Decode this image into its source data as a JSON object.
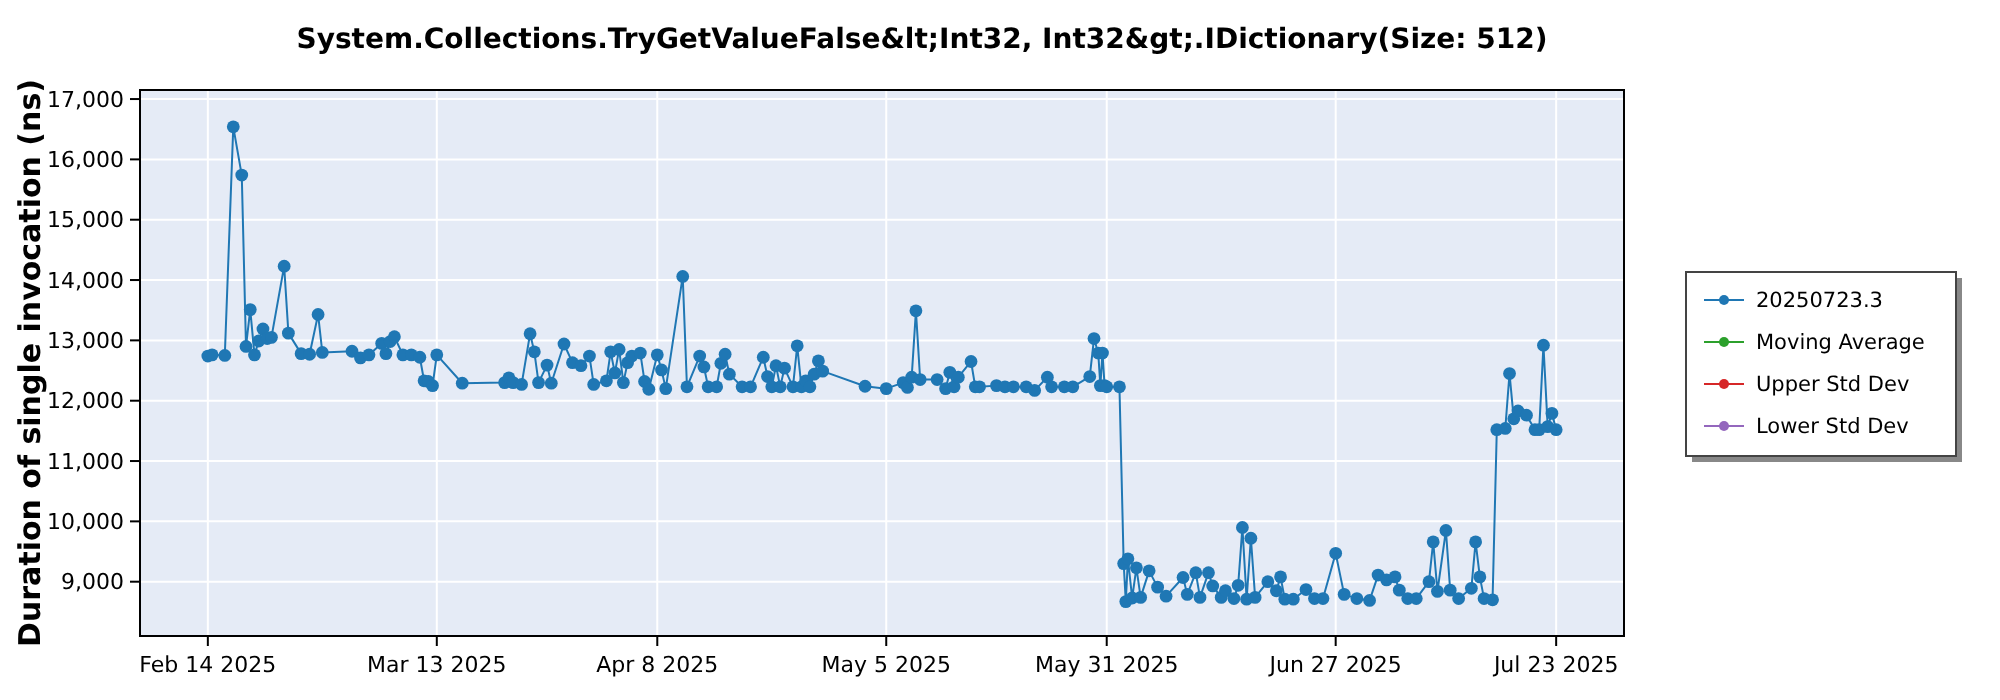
{
  "chart_data": {
    "type": "line",
    "title": "System.Collections.TryGetValueFalse&lt;Int32, Int32&gt;.IDictionary(Size: 512)",
    "ylabel": "Duration of single invocation (ns)",
    "xlim": [
      "2025-02-06",
      "2025-07-31"
    ],
    "xticks": [
      {
        "value": "2025-02-14",
        "label": "Feb 14 2025"
      },
      {
        "value": "2025-03-13",
        "label": "Mar 13 2025"
      },
      {
        "value": "2025-04-08",
        "label": "Apr 8 2025"
      },
      {
        "value": "2025-05-05",
        "label": "May 5 2025"
      },
      {
        "value": "2025-05-31",
        "label": "May 31 2025"
      },
      {
        "value": "2025-06-27",
        "label": "Jun 27 2025"
      },
      {
        "value": "2025-07-23",
        "label": "Jul 23 2025"
      }
    ],
    "ylim": [
      8100,
      17150
    ],
    "yticks": [
      {
        "value": 9000,
        "label": "9,000"
      },
      {
        "value": 10000,
        "label": "10,000"
      },
      {
        "value": 11000,
        "label": "11,000"
      },
      {
        "value": 12000,
        "label": "12,000"
      },
      {
        "value": 13000,
        "label": "13,000"
      },
      {
        "value": 14000,
        "label": "14,000"
      },
      {
        "value": 15000,
        "label": "15,000"
      },
      {
        "value": 16000,
        "label": "16,000"
      },
      {
        "value": 17000,
        "label": "17,000"
      }
    ],
    "grid": true,
    "legend": "right",
    "marker": "circle",
    "line_style": "solid",
    "series": [
      {
        "name": "20250723.3",
        "color": "#1f77b4",
        "x": [
          "2025-02-14",
          "2025-02-14T12:00",
          "2025-02-16",
          "2025-02-17",
          "2025-02-18",
          "2025-02-18T12:00",
          "2025-02-19",
          "2025-02-19T12:00",
          "2025-02-20",
          "2025-02-20T12:00",
          "2025-02-21",
          "2025-02-21T12:00",
          "2025-02-23",
          "2025-02-23T12:00",
          "2025-02-25",
          "2025-02-26",
          "2025-02-27",
          "2025-02-27T12:00",
          "2025-03-03",
          "2025-03-04",
          "2025-03-05",
          "2025-03-06T12:00",
          "2025-03-07",
          "2025-03-07T12:00",
          "2025-03-08",
          "2025-03-09",
          "2025-03-10",
          "2025-03-11",
          "2025-03-11T12:00",
          "2025-03-12",
          "2025-03-12T12:00",
          "2025-03-13",
          "2025-03-16",
          "2025-03-21",
          "2025-03-21T12:00",
          "2025-03-22",
          "2025-03-23",
          "2025-03-24",
          "2025-03-24T12:00",
          "2025-03-25",
          "2025-03-26",
          "2025-03-26T12:00",
          "2025-03-28",
          "2025-03-29",
          "2025-03-30",
          "2025-03-31",
          "2025-03-31T12:00",
          "2025-04-02",
          "2025-04-02T12:00",
          "2025-04-03",
          "2025-04-03T12:00",
          "2025-04-04",
          "2025-04-04T12:00",
          "2025-04-05",
          "2025-04-06",
          "2025-04-06T12:00",
          "2025-04-07",
          "2025-04-08",
          "2025-04-08T12:00",
          "2025-04-09",
          "2025-04-11",
          "2025-04-11T12:00",
          "2025-04-13",
          "2025-04-13T12:00",
          "2025-04-14",
          "2025-04-15",
          "2025-04-15T12:00",
          "2025-04-16",
          "2025-04-16T12:00",
          "2025-04-18",
          "2025-04-19",
          "2025-04-20T12:00",
          "2025-04-21",
          "2025-04-21T12:00",
          "2025-04-22",
          "2025-04-22T12:00",
          "2025-04-23",
          "2025-04-24",
          "2025-04-24T12:00",
          "2025-04-25",
          "2025-04-25T12:00",
          "2025-04-26",
          "2025-04-26T12:00",
          "2025-04-27",
          "2025-04-27T12:00",
          "2025-05-02T12:00",
          "2025-05-05",
          "2025-05-07",
          "2025-05-07T12:00",
          "2025-05-08",
          "2025-05-08T12:00",
          "2025-05-09",
          "2025-05-11",
          "2025-05-12",
          "2025-05-12T12:00",
          "2025-05-13",
          "2025-05-13T12:00",
          "2025-05-15",
          "2025-05-15T12:00",
          "2025-05-16",
          "2025-05-18",
          "2025-05-19",
          "2025-05-20",
          "2025-05-21T12:00",
          "2025-05-22T12:00",
          "2025-05-24",
          "2025-05-24T12:00",
          "2025-05-26",
          "2025-05-27",
          "2025-05-29",
          "2025-05-29T12:00",
          "2025-05-30",
          "2025-05-30T06:00",
          "2025-05-30T12:00",
          "2025-05-30T18:00",
          "2025-05-31",
          "2025-06-01T12:00",
          "2025-06-02",
          "2025-06-02T06:00",
          "2025-06-02T12:00",
          "2025-06-03",
          "2025-06-03T12:00",
          "2025-06-04",
          "2025-06-05",
          "2025-06-06",
          "2025-06-07",
          "2025-06-09",
          "2025-06-09T12:00",
          "2025-06-10T12:00",
          "2025-06-11",
          "2025-06-12",
          "2025-06-12T12:00",
          "2025-06-13T12:00",
          "2025-06-14",
          "2025-06-15",
          "2025-06-15T12:00",
          "2025-06-16",
          "2025-06-16T12:00",
          "2025-06-17",
          "2025-06-17T12:00",
          "2025-06-19",
          "2025-06-20",
          "2025-06-20T12:00",
          "2025-06-21",
          "2025-06-22",
          "2025-06-23T12:00",
          "2025-06-24T12:00",
          "2025-06-25T12:00",
          "2025-06-27",
          "2025-06-28",
          "2025-06-29T12:00",
          "2025-07-01",
          "2025-07-02",
          "2025-07-03",
          "2025-07-04",
          "2025-07-04T12:00",
          "2025-07-05T12:00",
          "2025-07-06T12:00",
          "2025-07-08",
          "2025-07-08T12:00",
          "2025-07-09",
          "2025-07-10",
          "2025-07-10T12:00",
          "2025-07-11T12:00",
          "2025-07-13",
          "2025-07-13T12:00",
          "2025-07-14",
          "2025-07-14T12:00",
          "2025-07-15T12:00",
          "2025-07-16",
          "2025-07-17",
          "2025-07-17T12:00",
          "2025-07-18",
          "2025-07-18T12:00",
          "2025-07-19T12:00",
          "2025-07-20T12:00",
          "2025-07-21",
          "2025-07-21T12:00",
          "2025-07-22",
          "2025-07-22T12:00",
          "2025-07-23"
        ],
        "values": [
          12740,
          12760,
          12750,
          16540,
          15740,
          12900,
          13510,
          12760,
          12990,
          13190,
          13030,
          13050,
          14230,
          13120,
          12780,
          12770,
          13430,
          12800,
          12820,
          12710,
          12760,
          12950,
          12780,
          12980,
          13060,
          12760,
          12760,
          12720,
          12330,
          12320,
          12250,
          12760,
          12290,
          12300,
          12380,
          12300,
          12270,
          13110,
          12810,
          12300,
          12590,
          12290,
          12940,
          12630,
          12580,
          12740,
          12270,
          12330,
          12810,
          12460,
          12850,
          12300,
          12630,
          12740,
          12790,
          12320,
          12190,
          12760,
          12510,
          12200,
          14060,
          12230,
          12740,
          12560,
          12230,
          12230,
          12620,
          12770,
          12440,
          12230,
          12230,
          12720,
          12400,
          12230,
          12580,
          12230,
          12540,
          12230,
          12910,
          12230,
          12330,
          12230,
          12440,
          12660,
          12490,
          12240,
          12200,
          12300,
          12220,
          12390,
          13490,
          12350,
          12350,
          12200,
          12470,
          12230,
          12390,
          12650,
          12230,
          12230,
          12250,
          12230,
          12230,
          12230,
          12170,
          12390,
          12230,
          12230,
          12230,
          12400,
          13030,
          12790,
          12250,
          12790,
          12250,
          12230,
          12230,
          9300,
          8670,
          9380,
          8730,
          9230,
          8740,
          9180,
          8910,
          8760,
          9070,
          8790,
          9150,
          8740,
          9150,
          8930,
          8740,
          8850,
          8720,
          8940,
          9900,
          8710,
          9720,
          8740,
          9000,
          8850,
          9080,
          8710,
          8710,
          8870,
          8720,
          8720,
          9470,
          8790,
          8720,
          8690,
          9110,
          9030,
          9080,
          8860,
          8720,
          8720,
          9000,
          9660,
          8840,
          9850,
          8860,
          8720,
          8890,
          9660,
          9080,
          8720,
          8700,
          11520,
          11540,
          12450,
          11700,
          11830,
          11760,
          11520,
          11520,
          12920,
          11570,
          11790,
          11520
        ]
      },
      {
        "name": "Moving Average",
        "color": "#2ca02c"
      },
      {
        "name": "Upper Std Dev",
        "color": "#d62728"
      },
      {
        "name": "Lower Std Dev",
        "color": "#9467bd"
      }
    ]
  }
}
